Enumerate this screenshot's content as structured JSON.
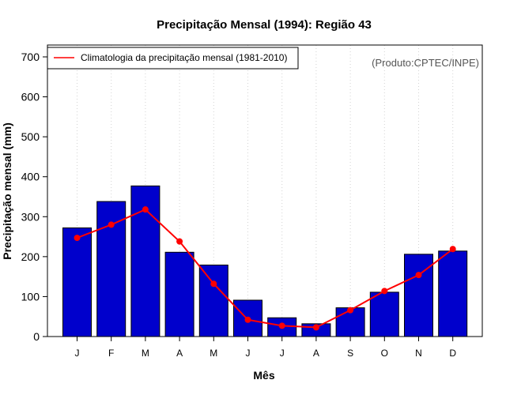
{
  "chart_data": {
    "type": "bar",
    "title": "Precipitação Mensal (1994): Região 43",
    "xlabel": "Mês",
    "ylabel": "Precipitação mensal (mm)",
    "categories": [
      "J",
      "F",
      "M",
      "A",
      "M",
      "J",
      "J",
      "A",
      "S",
      "O",
      "N",
      "D"
    ],
    "ylim": [
      0,
      700
    ],
    "yticks": [
      0,
      100,
      200,
      300,
      400,
      500,
      600,
      700
    ],
    "grid": "vertical dotted",
    "series": [
      {
        "name": "Precipitação mensal 1994",
        "type": "bar",
        "color": "#0000cc",
        "values": [
          272,
          338,
          377,
          211,
          179,
          91,
          47,
          32,
          72,
          111,
          206,
          214
        ]
      },
      {
        "name": "Climatologia da precipitação mensal (1981-2010)",
        "type": "line",
        "color": "#ff0000",
        "values": [
          247,
          280,
          318,
          238,
          132,
          42,
          27,
          23,
          66,
          114,
          154,
          219
        ]
      }
    ],
    "legend": {
      "position": "top-left",
      "entries": [
        "Climatologia da precipitação mensal (1981-2010)"
      ]
    },
    "annotation": "(Produto:CPTEC/INPE)"
  }
}
